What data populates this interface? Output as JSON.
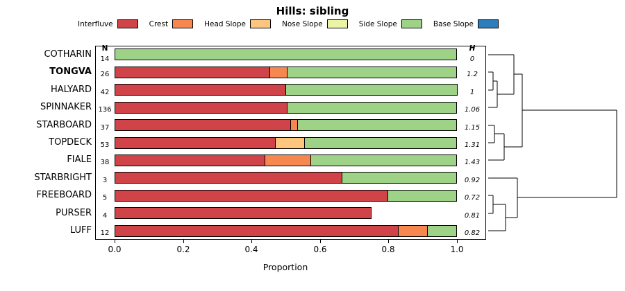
{
  "title": "Hills: sibling",
  "x_axis": {
    "label": "Proportion",
    "ticks": [
      {
        "label": "0.0",
        "value": 0.0
      },
      {
        "label": "0.2",
        "value": 0.2
      },
      {
        "label": "0.4",
        "value": 0.4
      },
      {
        "label": "0.6",
        "value": 0.6
      },
      {
        "label": "0.8",
        "value": 0.8
      },
      {
        "label": "1.0",
        "value": 1.0
      }
    ]
  },
  "columns": {
    "n_header": "N",
    "h_header": "H"
  },
  "legend": [
    {
      "label": "Interfluve",
      "color": "#cf4349"
    },
    {
      "label": "Crest",
      "color": "#f6884f"
    },
    {
      "label": "Head Slope",
      "color": "#fdc57e"
    },
    {
      "label": "Nose Slope",
      "color": "#ebf4a5"
    },
    {
      "label": "Side Slope",
      "color": "#9ed387"
    },
    {
      "label": "Base Slope",
      "color": "#2d7dbd"
    }
  ],
  "chart_data": {
    "type": "bar",
    "subtype": "stacked-horizontal-proportion",
    "title": "Hills: sibling",
    "xlabel": "Proportion",
    "xlim": [
      0,
      1
    ],
    "classes": [
      "Interfluve",
      "Crest",
      "Head Slope",
      "Nose Slope",
      "Side Slope",
      "Base Slope"
    ],
    "colors": {
      "Interfluve": "#cf4349",
      "Crest": "#f6884f",
      "Head Slope": "#fdc57e",
      "Nose Slope": "#ebf4a5",
      "Side Slope": "#9ed387",
      "Base Slope": "#2d7dbd"
    },
    "rows": [
      {
        "label": "COTHARIN",
        "bold": false,
        "n": "14",
        "h": "0",
        "segments": [
          {
            "class": "Side Slope",
            "value": 1.0
          }
        ]
      },
      {
        "label": "TONGVA",
        "bold": true,
        "n": "26",
        "h": "1.2",
        "segments": [
          {
            "class": "Interfluve",
            "value": 0.455
          },
          {
            "class": "Crest",
            "value": 0.05
          },
          {
            "class": "Side Slope",
            "value": 0.495
          }
        ]
      },
      {
        "label": "HALYARD",
        "bold": false,
        "n": "42",
        "h": "1",
        "segments": [
          {
            "class": "Interfluve",
            "value": 0.5
          },
          {
            "class": "Side Slope",
            "value": 0.5
          }
        ]
      },
      {
        "label": "SPINNAKER",
        "bold": false,
        "n": "136",
        "h": "1.06",
        "segments": [
          {
            "class": "Interfluve",
            "value": 0.505
          },
          {
            "class": "Side Slope",
            "value": 0.495
          }
        ]
      },
      {
        "label": "STARBOARD",
        "bold": false,
        "n": "37",
        "h": "1.15",
        "segments": [
          {
            "class": "Interfluve",
            "value": 0.515
          },
          {
            "class": "Crest",
            "value": 0.02
          },
          {
            "class": "Side Slope",
            "value": 0.465
          }
        ]
      },
      {
        "label": "TOPDECK",
        "bold": false,
        "n": "53",
        "h": "1.31",
        "segments": [
          {
            "class": "Interfluve",
            "value": 0.47
          },
          {
            "class": "Head Slope",
            "value": 0.085
          },
          {
            "class": "Side Slope",
            "value": 0.445
          }
        ]
      },
      {
        "label": "FIALE",
        "bold": false,
        "n": "38",
        "h": "1.43",
        "segments": [
          {
            "class": "Interfluve",
            "value": 0.44
          },
          {
            "class": "Crest",
            "value": 0.135
          },
          {
            "class": "Side Slope",
            "value": 0.425
          }
        ]
      },
      {
        "label": "STARBRIGHT",
        "bold": false,
        "n": "3",
        "h": "0.92",
        "segments": [
          {
            "class": "Interfluve",
            "value": 0.665
          },
          {
            "class": "Side Slope",
            "value": 0.335
          }
        ]
      },
      {
        "label": "FREEBOARD",
        "bold": false,
        "n": "5",
        "h": "0.72",
        "segments": [
          {
            "class": "Interfluve",
            "value": 0.8
          },
          {
            "class": "Side Slope",
            "value": 0.2
          }
        ]
      },
      {
        "label": "PURSER",
        "bold": false,
        "n": "4",
        "h": "0.81",
        "segments": [
          {
            "class": "Interfluve",
            "value": 0.75
          }
        ]
      },
      {
        "label": "LUFF",
        "bold": false,
        "n": "12",
        "h": "0.82",
        "segments": [
          {
            "class": "Interfluve",
            "value": 0.83
          },
          {
            "class": "Crest",
            "value": 0.085
          },
          {
            "class": "Side Slope",
            "value": 0.085
          }
        ]
      }
    ],
    "dendrogram": {
      "segments": [
        [
          703,
          79,
          740,
          79
        ],
        [
          703,
          104,
          710,
          104
        ],
        [
          703,
          130,
          710,
          130
        ],
        [
          710,
          104,
          710,
          130
        ],
        [
          710,
          117,
          716,
          117
        ],
        [
          703,
          155,
          716,
          155
        ],
        [
          716,
          117,
          716,
          155
        ],
        [
          716,
          136,
          740,
          136
        ],
        [
          740,
          79,
          740,
          136
        ],
        [
          740,
          107,
          752,
          107
        ],
        [
          703,
          181,
          712,
          181
        ],
        [
          703,
          206,
          712,
          206
        ],
        [
          712,
          181,
          712,
          206
        ],
        [
          712,
          193,
          726,
          193
        ],
        [
          703,
          231,
          726,
          231
        ],
        [
          726,
          193,
          726,
          231
        ],
        [
          726,
          212,
          752,
          212
        ],
        [
          752,
          107,
          752,
          212
        ],
        [
          752,
          159,
          888,
          159
        ],
        [
          703,
          257,
          745,
          257
        ],
        [
          703,
          282,
          710,
          282
        ],
        [
          703,
          308,
          710,
          308
        ],
        [
          710,
          282,
          710,
          308
        ],
        [
          710,
          295,
          728,
          295
        ],
        [
          703,
          333,
          728,
          333
        ],
        [
          728,
          295,
          728,
          333
        ],
        [
          728,
          314,
          745,
          314
        ],
        [
          745,
          257,
          745,
          314
        ],
        [
          745,
          285,
          888,
          285
        ],
        [
          888,
          159,
          888,
          285
        ]
      ]
    }
  }
}
